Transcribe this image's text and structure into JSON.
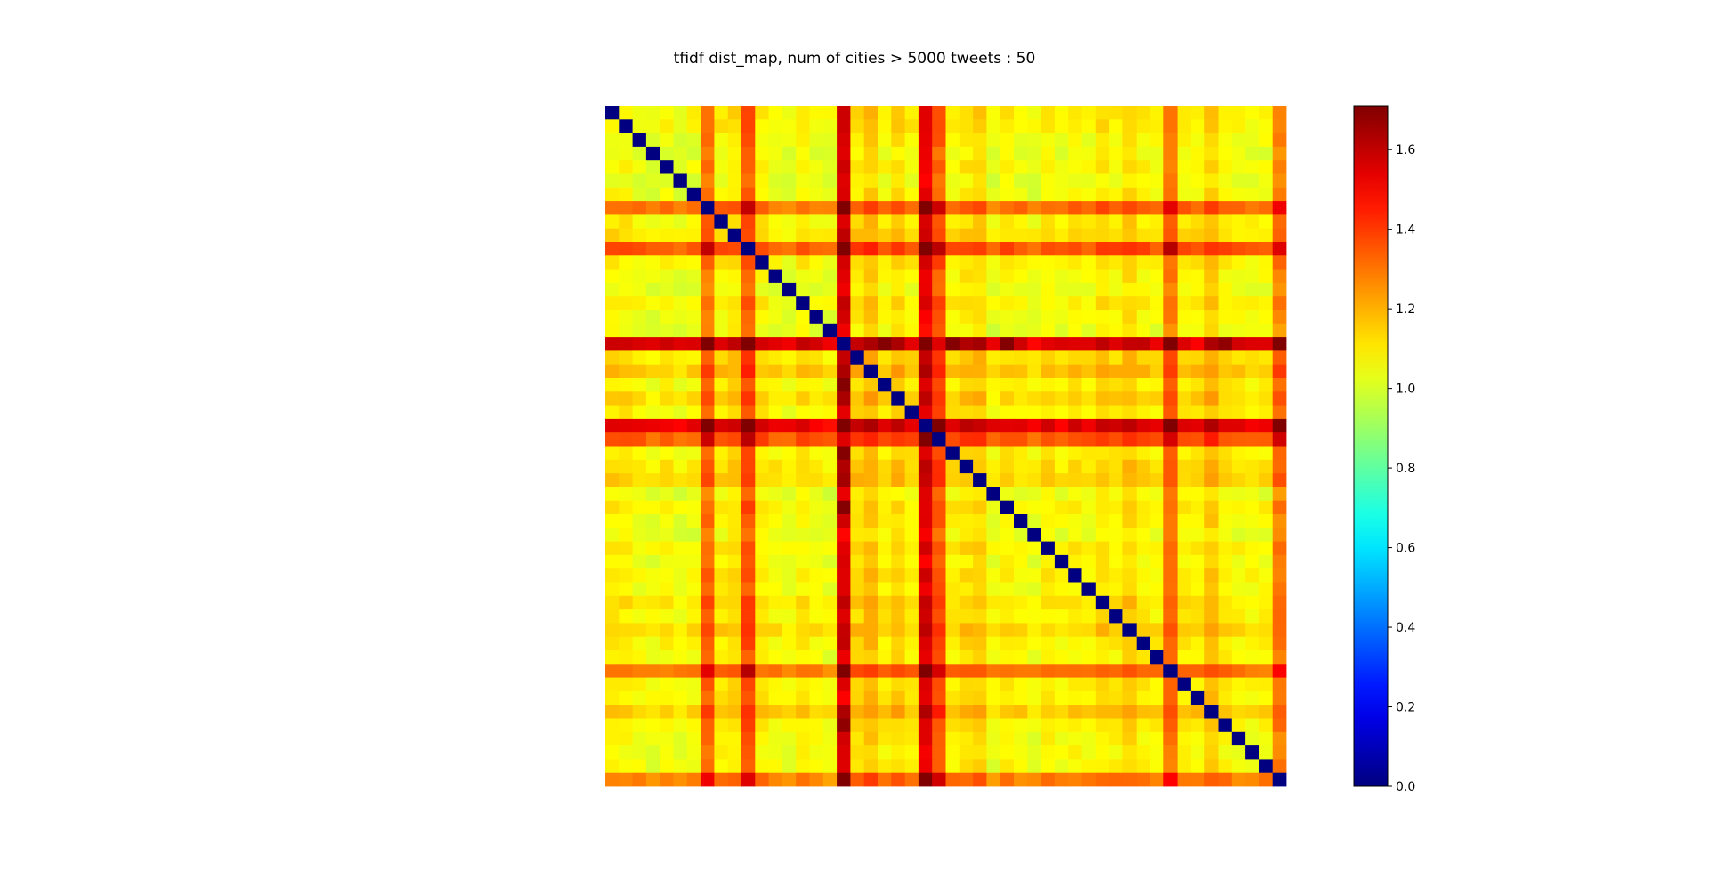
{
  "chart_data": {
    "type": "heatmap",
    "title": "tfidf dist_map, num of cities > 5000 tweets : 50",
    "n": 50,
    "colormap": "jet",
    "vmin": 0.0,
    "vmax": 1.71,
    "colorbar": {
      "ticks": [
        0.0,
        0.2,
        0.4,
        0.6,
        0.8,
        1.0,
        1.2,
        1.4,
        1.6
      ],
      "tick_labels": [
        "0.0",
        "0.2",
        "0.4",
        "0.6",
        "0.8",
        "1.0",
        "1.2",
        "1.4",
        "1.6"
      ]
    },
    "row_baseline": [
      1.05,
      1.05,
      1.02,
      1.0,
      1.03,
      1.0,
      1.02,
      1.28,
      1.05,
      1.08,
      1.32,
      1.05,
      1.02,
      1.0,
      1.05,
      1.02,
      1.0,
      1.52,
      1.08,
      1.13,
      1.05,
      1.1,
      1.05,
      1.5,
      1.32,
      1.05,
      1.08,
      1.1,
      1.0,
      1.05,
      1.03,
      1.0,
      1.05,
      1.02,
      1.05,
      1.03,
      1.08,
      1.05,
      1.1,
      1.05,
      1.03,
      1.27,
      1.05,
      1.05,
      1.12,
      1.05,
      1.03,
      1.02,
      1.03,
      1.25
    ],
    "high_pairs": [
      {
        "i": 17,
        "j": 20,
        "value": 1.7
      },
      {
        "i": 17,
        "j": 25,
        "value": 1.7
      },
      {
        "i": 17,
        "j": 29,
        "value": 1.7
      },
      {
        "i": 17,
        "j": 45,
        "value": 1.68
      },
      {
        "i": 17,
        "j": 24,
        "value": 1.55
      },
      {
        "i": 17,
        "j": 35,
        "value": 1.55
      },
      {
        "i": 17,
        "j": 43,
        "value": 1.5
      },
      {
        "i": 23,
        "j": 28,
        "value": 1.55
      },
      {
        "i": 23,
        "j": 45,
        "value": 1.55
      },
      {
        "i": 23,
        "j": 20,
        "value": 1.55
      },
      {
        "i": 24,
        "j": 36,
        "value": 1.4
      }
    ],
    "diagonal_value": 0.0
  }
}
